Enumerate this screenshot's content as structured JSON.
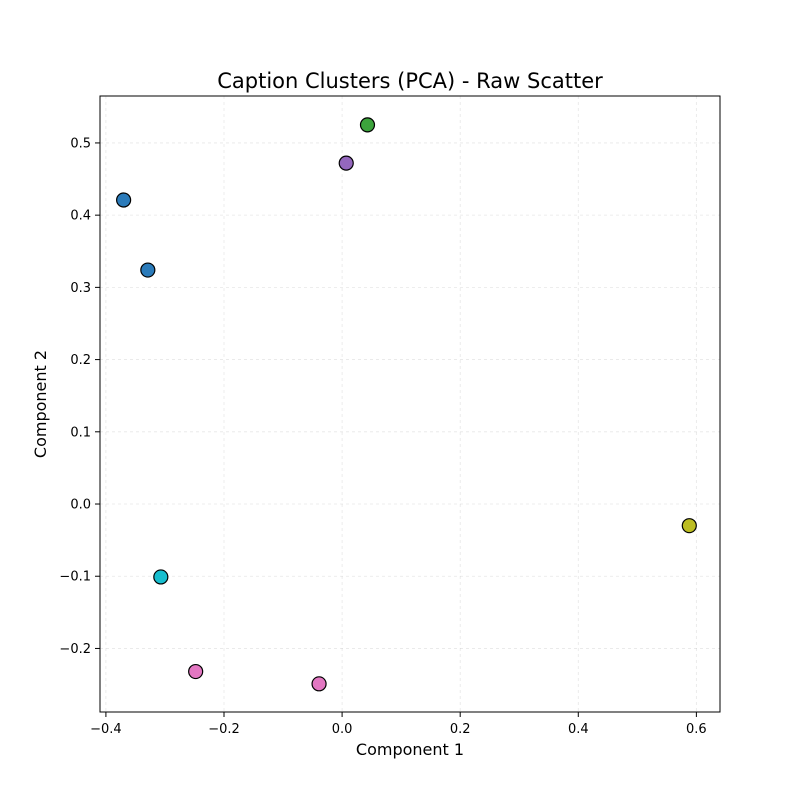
{
  "chart_data": {
    "type": "scatter",
    "title": "Caption Clusters (PCA) - Raw Scatter",
    "xlabel": "Component 1",
    "ylabel": "Component 2",
    "xlim": [
      -0.41,
      0.64
    ],
    "ylim": [
      -0.288,
      0.565
    ],
    "xticks": [
      -0.4,
      -0.2,
      0.0,
      0.2,
      0.4,
      0.6
    ],
    "xtick_labels": [
      "−0.4",
      "−0.2",
      "0.0",
      "0.2",
      "0.4",
      "0.6"
    ],
    "yticks": [
      -0.2,
      -0.1,
      0.0,
      0.1,
      0.2,
      0.3,
      0.4,
      0.5
    ],
    "ytick_labels": [
      "−0.2",
      "−0.1",
      "0.0",
      "0.1",
      "0.2",
      "0.3",
      "0.4",
      "0.5"
    ],
    "grid": true,
    "points": [
      {
        "x": -0.37,
        "y": 0.421,
        "color": "#2b7bba"
      },
      {
        "x": -0.329,
        "y": 0.324,
        "color": "#2b7bba"
      },
      {
        "x": 0.007,
        "y": 0.472,
        "color": "#9467bd"
      },
      {
        "x": 0.043,
        "y": 0.525,
        "color": "#3ca33c"
      },
      {
        "x": -0.307,
        "y": -0.101,
        "color": "#17becf"
      },
      {
        "x": -0.248,
        "y": -0.232,
        "color": "#e377c2"
      },
      {
        "x": -0.039,
        "y": -0.249,
        "color": "#e377c2"
      },
      {
        "x": 0.588,
        "y": -0.03,
        "color": "#bcbd22"
      }
    ]
  }
}
